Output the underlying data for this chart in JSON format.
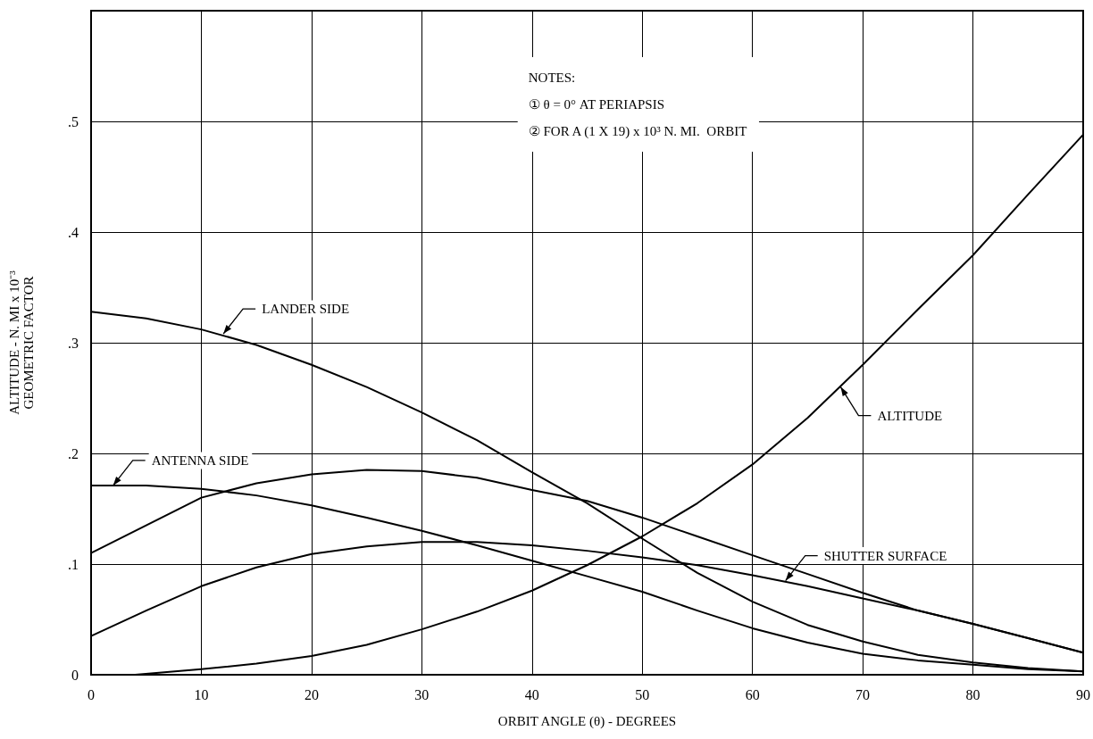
{
  "chart_data": {
    "type": "line",
    "xlabel": "ORBIT ANGLE (θ) - DEGREES",
    "ylabel": "ALTITUDE - N. MI x 10⁻³\nGEOMETRIC FACTOR",
    "x": [
      0,
      5,
      10,
      15,
      20,
      25,
      30,
      35,
      40,
      45,
      50,
      55,
      60,
      65,
      70,
      75,
      80,
      85,
      90
    ],
    "series": [
      {
        "color": "#000000",
        "values": [
          0.328,
          0.322,
          0.312,
          0.298,
          0.28,
          0.26,
          0.237,
          0.212,
          0.183,
          0.155,
          0.123,
          0.092,
          0.066,
          0.045,
          0.03,
          0.018,
          0.011,
          0.006,
          0.003
        ]
      },
      {
        "color": "#000000",
        "values": [
          0.171,
          0.171,
          0.168,
          0.162,
          0.153,
          0.142,
          0.13,
          0.117,
          0.103,
          0.089,
          0.075,
          0.058,
          0.042,
          0.029,
          0.019,
          0.013,
          0.009,
          0.005,
          0.003
        ]
      },
      {
        "color": "#000000",
        "values": [
          0.11,
          0.135,
          0.16,
          0.173,
          0.181,
          0.185,
          0.184,
          0.178,
          0.167,
          0.157,
          0.142,
          0.125,
          0.108,
          0.091,
          0.074,
          0.058,
          0.046,
          0.033,
          0.02
        ]
      },
      {
        "color": "#000000",
        "values": [
          0.035,
          0.058,
          0.08,
          0.097,
          0.109,
          0.116,
          0.12,
          0.12,
          0.117,
          0.112,
          0.106,
          0.099,
          0.09,
          0.08,
          0.069,
          0.058,
          0.046,
          0.033,
          0.02
        ]
      },
      {
        "color": "#000000",
        "x": [
          4,
          10,
          15,
          20,
          25,
          30,
          35,
          40,
          45,
          50,
          55,
          60,
          65,
          70,
          75,
          80,
          85,
          90
        ],
        "values": [
          0,
          0.005,
          0.01,
          0.017,
          0.027,
          0.041,
          0.057,
          0.076,
          0.099,
          0.125,
          0.155,
          0.19,
          0.232,
          0.28,
          0.33,
          0.379,
          0.434,
          0.488
        ]
      }
    ],
    "annotations": [
      {
        "text": "LANDER SIDE",
        "x": 12,
        "y": 0.308
      },
      {
        "text": "ANTENNA SIDE",
        "x": 2,
        "y": 0.171
      },
      {
        "text": "SHUTTER SURFACE",
        "x": 63,
        "y": 0.085
      },
      {
        "text": "ALTITUDE",
        "x": 68,
        "y": 0.26
      },
      "NOTES:",
      "① θ = 0° AT PERIAPSIS",
      "② FOR A (1 X 19) x 10³ N. MI.  ORBIT"
    ],
    "xlim": [
      0,
      90
    ],
    "xticks": [
      0,
      10,
      20,
      30,
      40,
      50,
      60,
      70,
      80,
      90
    ],
    "ylim": [
      0,
      0.6
    ],
    "yticks": [
      0,
      {
        "value": 0.1,
        "label": ".1"
      },
      {
        "value": 0.2,
        "label": ".2"
      },
      {
        "value": 0.3,
        "label": ".3"
      },
      {
        "value": 0.4,
        "label": ".4"
      },
      {
        "value": 0.5,
        "label": ".5"
      }
    ],
    "grid": true,
    "marker": "none",
    "line_style": "solid"
  }
}
